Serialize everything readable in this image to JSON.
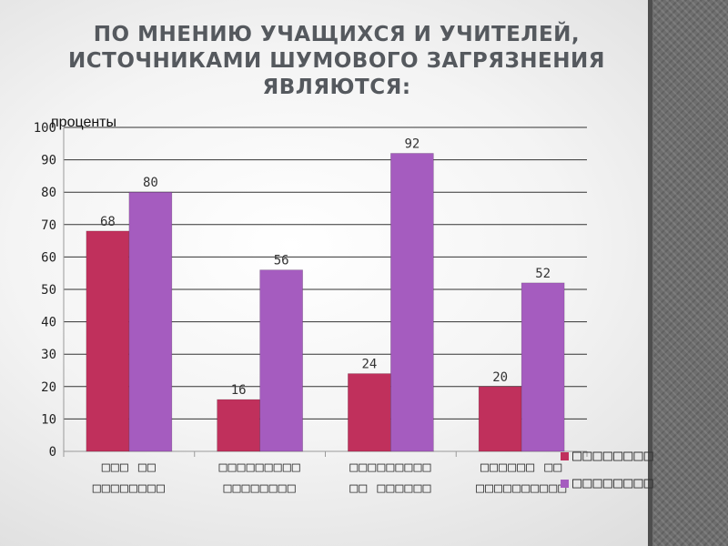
{
  "slide": {
    "title_lines": [
      "ПО МНЕНИЮ УЧАЩИХСЯ И УЧИТЕЛЕЙ,",
      "ИСТОЧНИКАМИ ШУМОВОГО ЗАГРЯЗНЕНИЯ",
      "ЯВЛЯЮТСЯ:"
    ]
  },
  "chart_data": {
    "type": "bar",
    "ylabel": "проценты",
    "ylim": [
      0,
      100
    ],
    "yticks": [
      "0",
      "10",
      "20",
      "30",
      "40",
      "50",
      "60",
      "70",
      "80",
      "90",
      "100"
    ],
    "categories": [
      [
        "□□□ □□",
        "□□□□□□□□"
      ],
      [
        "□□□□□□□□□",
        "□□□□□□□□"
      ],
      [
        "□□□□□□□□□",
        "□□ □□□□□□"
      ],
      [
        "□□□□□□ □□",
        "□□□□□□□□□□"
      ]
    ],
    "series": [
      {
        "name": "□□□□□□□□",
        "color": "#c0305c",
        "values": [
          68,
          16,
          24,
          20
        ],
        "labels": [
          "68",
          "16",
          "24",
          "20"
        ]
      },
      {
        "name": "□□□□□□□□",
        "color": "#a55cbf",
        "values": [
          80,
          56,
          92,
          52
        ],
        "labels": [
          "80",
          "56",
          "92",
          "52"
        ]
      }
    ],
    "grid": true,
    "legend": "right"
  }
}
